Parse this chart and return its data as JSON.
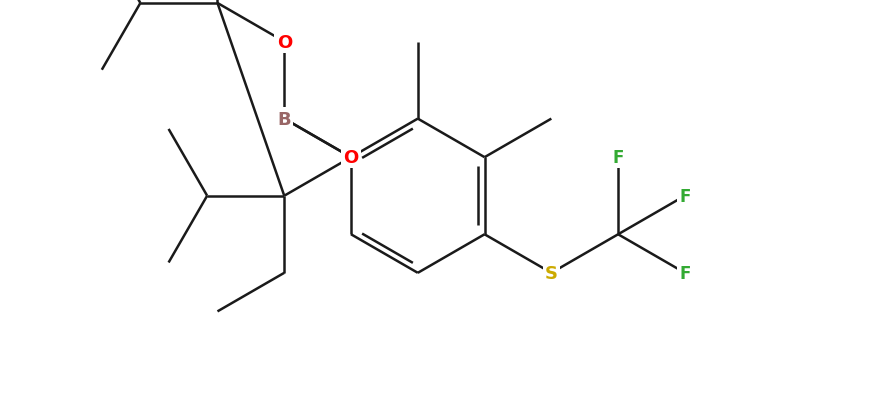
{
  "background_color": "#ffffff",
  "bond_color": "#1a1a1a",
  "atom_colors": {
    "B": "#996666",
    "O": "#ff0000",
    "S": "#ccaa00",
    "F": "#33aa33",
    "C": "#1a1a1a"
  },
  "figsize": [
    8.87,
    4.14
  ],
  "dpi": 100,
  "bond_lw": 1.8,
  "font_size": 13
}
